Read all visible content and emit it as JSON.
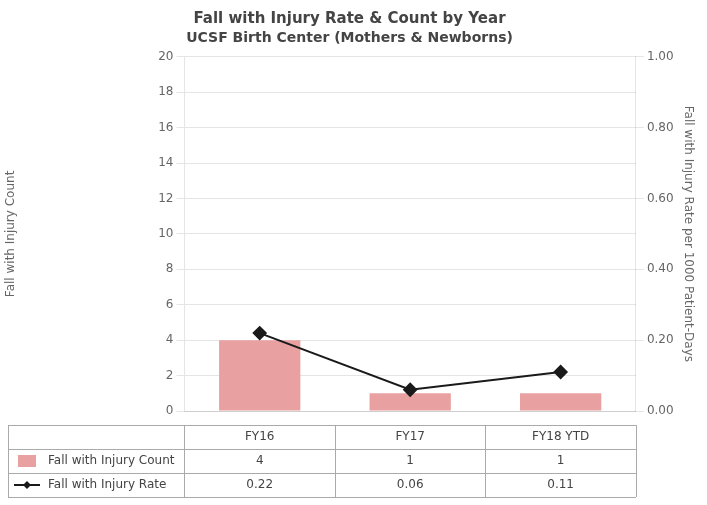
{
  "chart_data": {
    "type": "bar",
    "title": "Fall with Injury Rate & Count by Year",
    "subtitle": "UCSF Birth Center (Mothers & Newborns)",
    "categories": [
      "FY16",
      "FY17",
      "FY18 YTD"
    ],
    "series": [
      {
        "name": "Fall with Injury Count",
        "type": "bar",
        "color": "#e8a0a0",
        "values": [
          4,
          1,
          1
        ]
      },
      {
        "name": "Fall with Injury Rate",
        "type": "line",
        "axis": "y2",
        "color": "#1a1a1a",
        "marker": "diamond",
        "values": [
          0.22,
          0.06,
          0.11
        ]
      }
    ],
    "ylabel": "Fall with Injury Count",
    "y2label": "Fall with Injury Rate per 1000 Patient-Days",
    "ylim": [
      0,
      20
    ],
    "yticks": [
      0,
      2,
      4,
      6,
      8,
      10,
      12,
      14,
      16,
      18,
      20
    ],
    "y2lim": [
      0,
      1.0
    ],
    "y2ticks": [
      {
        "value": 0,
        "label": "0.00"
      },
      {
        "value": 0.2,
        "label": "0.20"
      },
      {
        "value": 0.4,
        "label": "0.40"
      },
      {
        "value": 0.6,
        "label": "0.60"
      },
      {
        "value": 0.8,
        "label": "0.80"
      },
      {
        "value": 1.0,
        "label": "1.00"
      }
    ],
    "grid": true,
    "legend": "bottom",
    "data_labels": true
  }
}
